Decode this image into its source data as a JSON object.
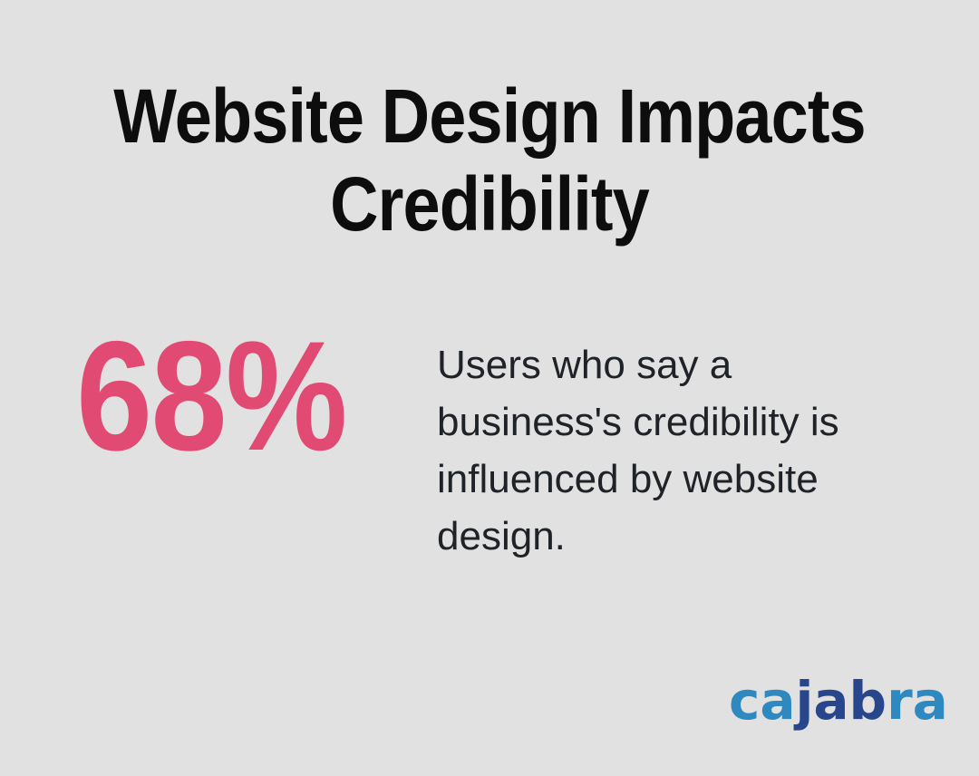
{
  "colors": {
    "background": "#e0e1e0",
    "title": "#0d0d0d",
    "stat_pink": "#e04a73",
    "text_dark": "#1f2328",
    "logo_light_blue": "#2d89c0",
    "logo_dark_blue": "#27468b"
  },
  "title": {
    "full_text": "Website Design Impacts Credibility",
    "lines": [
      "Website Design Impacts",
      "Credibility"
    ]
  },
  "stat": {
    "value": "68%",
    "description_lines": [
      "Users who say a",
      "business's credibility is",
      "influenced by website",
      "design."
    ]
  },
  "logo": {
    "brand": "cajabra",
    "segments": [
      {
        "text": "ca",
        "color": "#2d89c0"
      },
      {
        "text": "jab",
        "color": "#27468b"
      },
      {
        "text": "ra",
        "color": "#2d89c0"
      }
    ]
  }
}
